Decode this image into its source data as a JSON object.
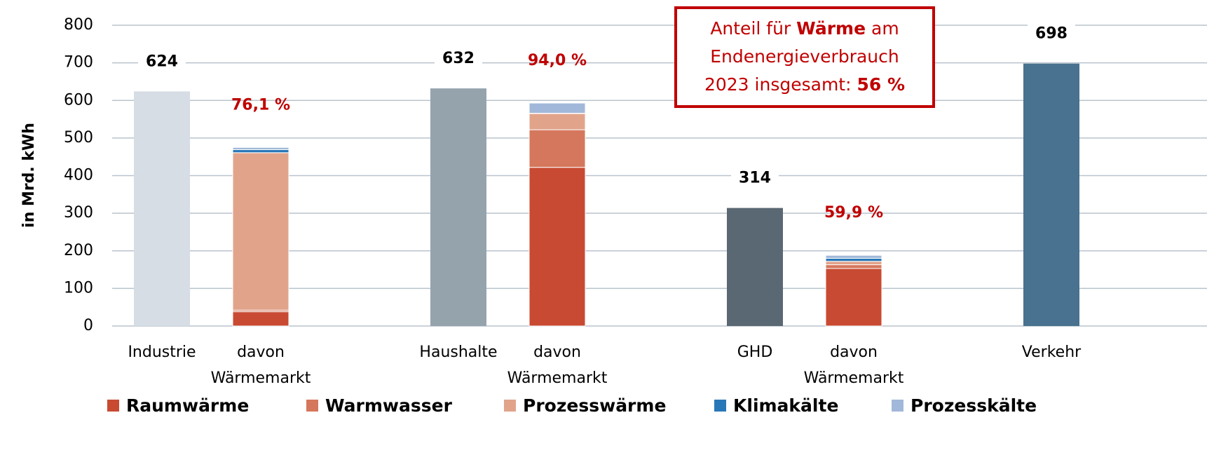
{
  "chart_data": {
    "type": "bar",
    "y_axis_label": "in Mrd. kWh",
    "categories": [
      "Industrie",
      "davon Wärmemarkt",
      null,
      "Haushalte",
      "davon Wärmemarkt",
      null,
      "GHD",
      "davon Wärmemarkt",
      null,
      "Verkehr"
    ],
    "values": [
      624,
      null,
      null,
      632,
      null,
      null,
      314,
      null,
      null,
      698
    ],
    "colors": [
      "#d6dde4",
      null,
      null,
      "#95a3ad",
      null,
      null,
      "#5a6873",
      null,
      null,
      "#48728f"
    ],
    "series": [
      {
        "name": "Raumwärme",
        "color": "#c84a32",
        "values": [
          null,
          38,
          null,
          null,
          422,
          null,
          null,
          153,
          null,
          null
        ]
      },
      {
        "name": "Warmwasser",
        "color": "#d5775c",
        "values": [
          null,
          4,
          null,
          null,
          100,
          null,
          null,
          10,
          null,
          null
        ]
      },
      {
        "name": "Prozesswärme",
        "color": "#e1a48b",
        "values": [
          null,
          419,
          null,
          null,
          43,
          null,
          null,
          9,
          null,
          null
        ]
      },
      {
        "name": "Klimakälte",
        "color": "#2878b8",
        "values": [
          null,
          8,
          null,
          null,
          1,
          null,
          null,
          8,
          null,
          null
        ]
      },
      {
        "name": "Prozesskälte",
        "color": "#a2b8da",
        "values": [
          null,
          6,
          null,
          null,
          27,
          null,
          null,
          8,
          null,
          null
        ]
      }
    ],
    "share_labels": [
      null,
      "76,1 %",
      null,
      null,
      "94,0 %",
      null,
      null,
      "59,9 %",
      null,
      null
    ],
    "annotation": [
      [
        {
          "text": "Anteil für "
        },
        {
          "text": "Wärme",
          "bold": true
        },
        {
          "text": " am"
        }
      ],
      [
        {
          "text": "Endenergieverbrauch"
        }
      ],
      [
        {
          "text": "2023 insgesamt: "
        },
        {
          "text": "56 %",
          "bold": true
        }
      ]
    ],
    "ylim": [
      0,
      800
    ],
    "yticks": [
      0,
      100,
      200,
      300,
      400,
      500,
      600,
      700,
      800
    ],
    "grid": true,
    "legend": "bottom"
  }
}
